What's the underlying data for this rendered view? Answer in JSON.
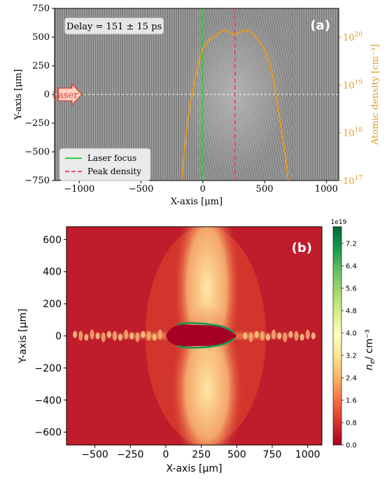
{
  "chart_data": [
    {
      "type": "line",
      "panel_label": "(a)",
      "xlabel": "X-axis [μm]",
      "ylabel": "Y-axis [μm]",
      "y2label": "Atomic density [cm⁻³]",
      "xlim": [
        -1200,
        1100
      ],
      "ylim": [
        -750,
        750
      ],
      "y2lim_log10": [
        17,
        20.6
      ],
      "y2scale": "log",
      "xticks": [
        -1000,
        -500,
        0,
        500,
        1000
      ],
      "yticks": [
        -750,
        -500,
        -250,
        0,
        250,
        500,
        750
      ],
      "y2ticks": [
        {
          "base": "10",
          "exp": "17",
          "value": 17
        },
        {
          "base": "10",
          "exp": "18",
          "value": 18
        },
        {
          "base": "10",
          "exp": "19",
          "value": 19
        },
        {
          "base": "10",
          "exp": "20",
          "value": 20
        }
      ],
      "annotation_delay": "Delay = 151 ± 15 ps",
      "annotation_laser": "Laser",
      "colors": {
        "laser_focus": "#2ecc40",
        "peak_density": "#e8458b",
        "density_curve": "#e69b1e",
        "axis2": "#e69b1e"
      },
      "legend_position": "lower-left",
      "series": [
        {
          "name": "Laser focus",
          "style": "solid",
          "x": [
            0,
            0
          ],
          "y": [
            -750,
            750
          ]
        },
        {
          "name": "Peak density",
          "style": "dashed",
          "x": [
            260,
            260
          ],
          "y": [
            -750,
            750
          ]
        },
        {
          "name": "",
          "axis": "y2",
          "x": [
            -170,
            -150,
            -120,
            -80,
            -40,
            0,
            50,
            100,
            150,
            180,
            220,
            260,
            300,
            340,
            380,
            420,
            460,
            500,
            540,
            580,
            610,
            640,
            670,
            690
          ],
          "y_log10": [
            17,
            17.6,
            18.3,
            18.9,
            19.4,
            19.75,
            19.95,
            20.02,
            20.12,
            20.15,
            20.08,
            20.05,
            20.1,
            20.15,
            20.12,
            20.02,
            19.9,
            19.75,
            19.45,
            19.0,
            18.5,
            18.0,
            17.5,
            17
          ]
        }
      ],
      "gridlines": false
    },
    {
      "type": "heatmap",
      "panel_label": "(b)",
      "xlabel": "X-axis [μm]",
      "ylabel": "Y-axis [μm]",
      "xlim": [
        -700,
        1100
      ],
      "ylim": [
        -680,
        680
      ],
      "xticks": [
        -500,
        -250,
        0,
        250,
        500,
        750,
        1000
      ],
      "yticks": [
        -600,
        -400,
        -200,
        0,
        200,
        400,
        600
      ],
      "colorbar": {
        "label": "n",
        "label_sub": "e",
        "label_unit": "/ cm⁻³",
        "scale_note": "1e19",
        "ticks": [
          "0.0",
          "0.8",
          "1.6",
          "2.4",
          "3.2",
          "4.0",
          "4.8",
          "5.6",
          "6.4",
          "7.2"
        ],
        "range": [
          0,
          7.8
        ],
        "colormap": "RdYlGn"
      },
      "gridlines": false
    }
  ]
}
